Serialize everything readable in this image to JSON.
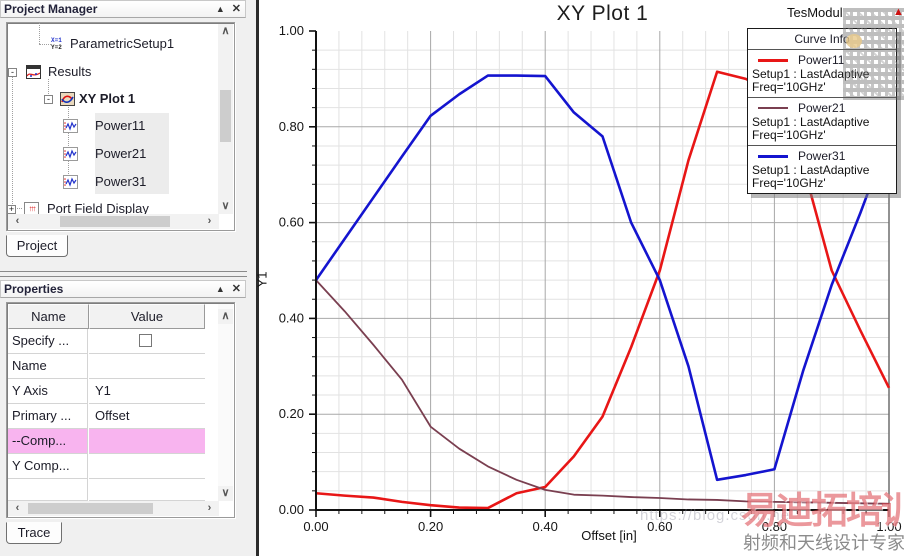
{
  "project_manager": {
    "title": "Project Manager",
    "collapse_btn": "▲",
    "close_btn": "✕",
    "tree": [
      {
        "label": "ParametricSetup1",
        "icon": "xy-setup-icon",
        "icon_text_1": "X=1",
        "icon_text_2": "Y=2"
      },
      {
        "label": "Results",
        "icon": "results-icon",
        "expander": "-"
      },
      {
        "label": "XY Plot 1",
        "icon": "xy-plot-icon",
        "expander": "-"
      },
      {
        "label": "Power11",
        "icon": "trace-icon"
      },
      {
        "label": "Power21",
        "icon": "trace-icon"
      },
      {
        "label": "Power31",
        "icon": "trace-icon"
      },
      {
        "label": "Port Field Display",
        "icon": "port-field-icon",
        "expander": "+",
        "port_icon_glyph": "↑↑↑"
      }
    ],
    "tab": "Project"
  },
  "properties": {
    "title": "Properties",
    "collapse_btn": "▲",
    "close_btn": "✕",
    "columns": {
      "name": "Name",
      "value": "Value"
    },
    "rows": [
      {
        "name": "Specify ...",
        "value": "",
        "checkbox": "unchecked"
      },
      {
        "name": "Name",
        "value": ""
      },
      {
        "name": "Y Axis",
        "value": "Y1"
      },
      {
        "name": "Primary ...",
        "value": "Offset"
      },
      {
        "name": "--Comp...",
        "value": "",
        "highlight": "#f8b4ef"
      },
      {
        "name": "Y Comp...",
        "value": ""
      }
    ],
    "tab": "Trace"
  },
  "scrollbars": {
    "up": "∧",
    "down": "∨",
    "left": "‹",
    "right": "›"
  },
  "chart_data": {
    "type": "line",
    "title": "XY Plot 1",
    "top_right_label": "TesModul",
    "legend_title": "Curve Info",
    "xlabel": "Offset [in]",
    "ylabel": "Y1",
    "xlim": [
      0.0,
      1.0
    ],
    "ylim": [
      0.0,
      1.0
    ],
    "x_major_ticks": [
      0.0,
      0.2,
      0.4,
      0.6,
      0.8,
      1.0
    ],
    "y_major_ticks": [
      0.0,
      0.2,
      0.4,
      0.6,
      0.8,
      1.0
    ],
    "x_tick_labels": [
      "0.00",
      "0.20",
      "0.40",
      "0.60",
      "0.80",
      "1.00"
    ],
    "y_tick_labels": [
      "0.00",
      "0.20",
      "0.40",
      "0.60",
      "0.80",
      "1.00"
    ],
    "minor_step": 0.04,
    "grid": "on",
    "legend_position": "top-right",
    "x": [
      0.0,
      0.05,
      0.1,
      0.15,
      0.2,
      0.25,
      0.3,
      0.35,
      0.4,
      0.45,
      0.5,
      0.55,
      0.6,
      0.65,
      0.7,
      0.75,
      0.8,
      0.85,
      0.9,
      0.95,
      1.0
    ],
    "series": [
      {
        "name": "Power11",
        "setup": "Setup1 : LastAdaptive",
        "freq": "Freq='10GHz'",
        "color": "#e81616",
        "values": [
          0.035,
          0.03,
          0.026,
          0.017,
          0.01,
          0.005,
          0.004,
          0.035,
          0.048,
          0.112,
          0.195,
          0.34,
          0.5,
          0.73,
          0.915,
          0.9,
          0.87,
          0.72,
          0.5,
          0.375,
          0.255
        ]
      },
      {
        "name": "Power21",
        "setup": "Setup1 : LastAdaptive",
        "freq": "Freq='10GHz'",
        "color": "#7a3f50",
        "values": [
          0.48,
          0.415,
          0.345,
          0.272,
          0.174,
          0.128,
          0.091,
          0.063,
          0.042,
          0.032,
          0.03,
          0.027,
          0.025,
          0.022,
          0.021,
          0.018,
          0.017,
          0.016,
          0.015,
          0.014,
          0.013
        ]
      },
      {
        "name": "Power31",
        "setup": "Setup1 : LastAdaptive",
        "freq": "Freq='10GHz'",
        "color": "#1414cf",
        "values": [
          0.48,
          0.566,
          0.652,
          0.738,
          0.823,
          0.868,
          0.907,
          0.907,
          0.906,
          0.83,
          0.78,
          0.6,
          0.48,
          0.3,
          0.063,
          0.073,
          0.085,
          0.29,
          0.47,
          0.62,
          0.78
        ]
      }
    ],
    "colors": {
      "grid_major": "#a8a8a8",
      "grid_minor": "#e2e2e2",
      "axis": "#111111",
      "frame_right": "#6e6e6e"
    }
  },
  "watermarks": {
    "url_text": "https://blog.csdn.ne",
    "red_text": "易迪拓培训",
    "gray_text": "射频和天线设计专家",
    "logo_glyph": "▲"
  }
}
